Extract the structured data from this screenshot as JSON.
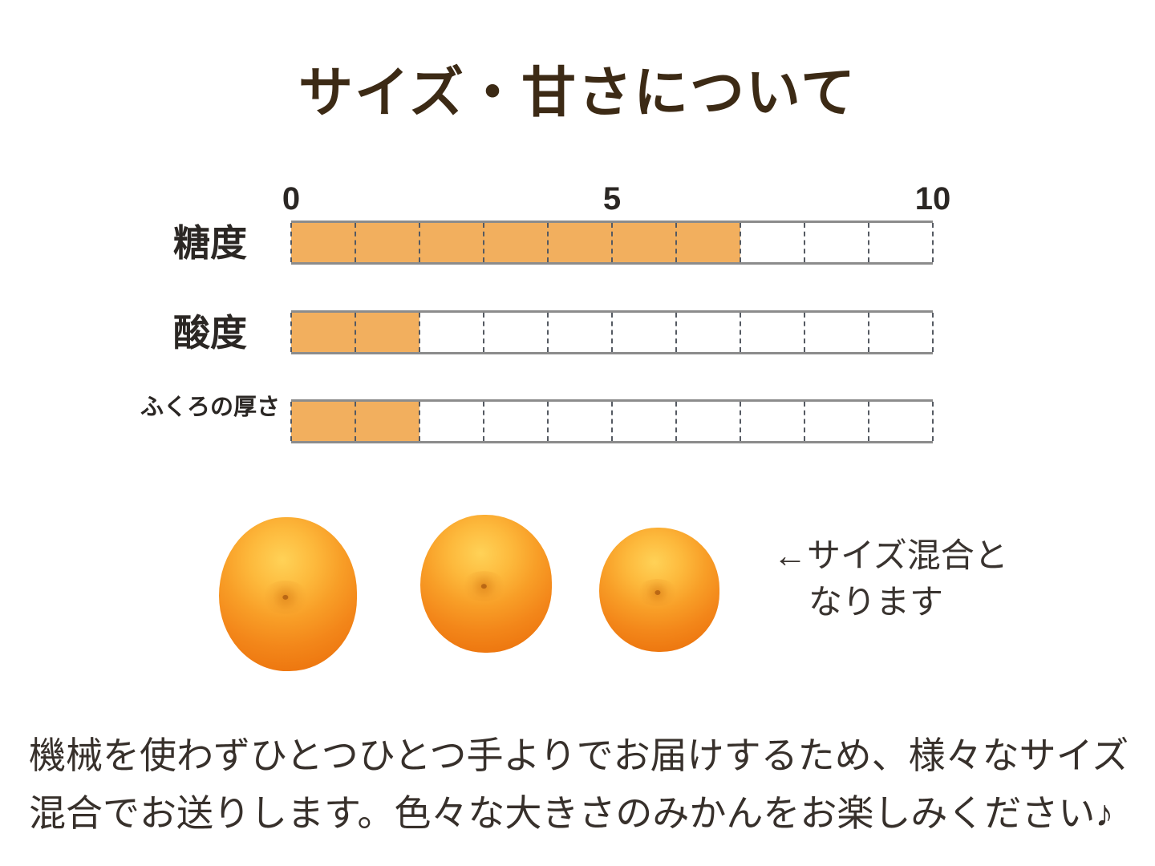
{
  "page": {
    "title": "サイズ・甘さについて",
    "title_color": "#3C2A15",
    "background": "#FFFFFF"
  },
  "chart_data": {
    "type": "bar",
    "orientation": "horizontal",
    "title": "サイズ・甘さについて",
    "categories": [
      "糖度",
      "酸度",
      "ふくろの厚さ"
    ],
    "values": [
      7,
      2,
      2
    ],
    "xlim": [
      0,
      10
    ],
    "ticks": [
      "0",
      "5",
      "10"
    ],
    "grid": "dashed vertical lines at every unit from 0 to 10",
    "legend": "none",
    "fill_color": "#F2AF5E",
    "bar_background": "#FFFFFF",
    "bar_border_color": "#8C8C8C",
    "gridline_color": "#555A62"
  },
  "note": {
    "line1": "←サイズ混合と",
    "line2": "なります",
    "arrow_icon": "left-arrow"
  },
  "footer": {
    "line1": "機械を使わずひとつひとつ手よりでお届けするため、様々なサイズ",
    "line2": "混合でお送りします。色々な大きさのみかんをお楽しみください♪"
  },
  "images": {
    "oranges": [
      {
        "name": "mandarin-large"
      },
      {
        "name": "mandarin-medium"
      },
      {
        "name": "mandarin-small"
      }
    ],
    "fruit_colors": {
      "highlight": "#FFD257",
      "mid": "#F89E27",
      "deep": "#EA7210"
    }
  }
}
